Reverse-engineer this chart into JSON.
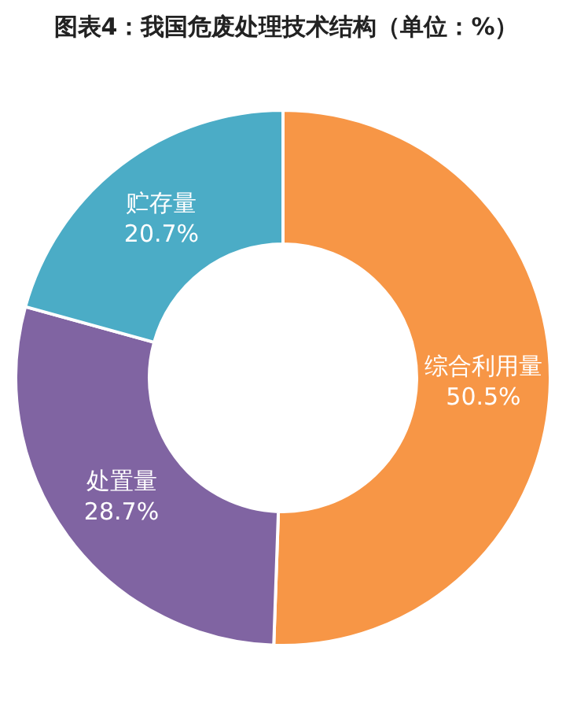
{
  "chart_data": {
    "type": "donut",
    "title": "图表4：我国危废处理技术结构（单位：%）",
    "categories": [
      "综合利用量",
      "处置量",
      "贮存量"
    ],
    "values": [
      50.5,
      28.7,
      20.7
    ],
    "value_labels": [
      "50.5%",
      "28.7%",
      "20.7%"
    ],
    "colors": [
      "#f79646",
      "#8064a2",
      "#4bacc6"
    ],
    "legend": false
  }
}
